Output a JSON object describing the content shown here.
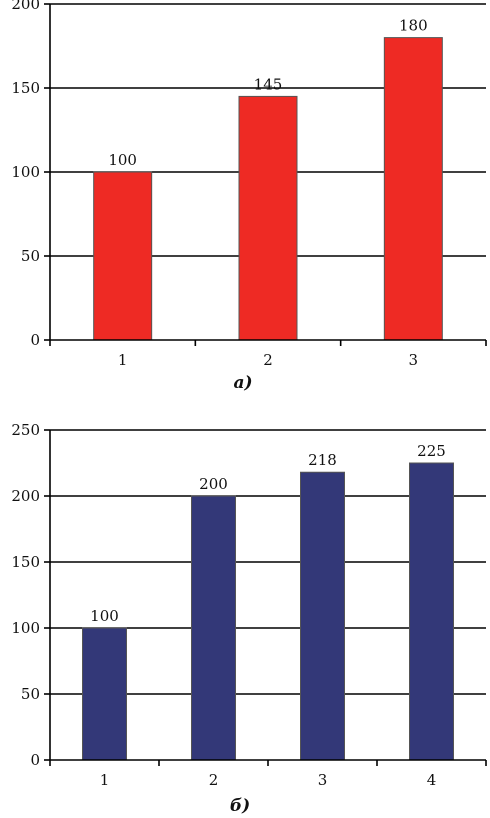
{
  "chart_data": [
    {
      "type": "bar",
      "categories": [
        "1",
        "2",
        "3"
      ],
      "values": [
        100,
        145,
        180
      ],
      "data_labels": [
        "100",
        "145",
        "180"
      ],
      "yticks": [
        "0",
        "50",
        "100",
        "150",
        "200"
      ],
      "ylim": [
        0,
        200
      ],
      "color": "#ee2a24",
      "caption": "а)",
      "grid": true
    },
    {
      "type": "bar",
      "categories": [
        "1",
        "2",
        "3",
        "4"
      ],
      "values": [
        100,
        200,
        218,
        225
      ],
      "data_labels": [
        "100",
        "200",
        "218",
        "225"
      ],
      "yticks": [
        "0",
        "50",
        "100",
        "150",
        "200",
        "250"
      ],
      "ylim": [
        0,
        250
      ],
      "color": "#333878",
      "caption": "б)",
      "grid": true
    }
  ]
}
